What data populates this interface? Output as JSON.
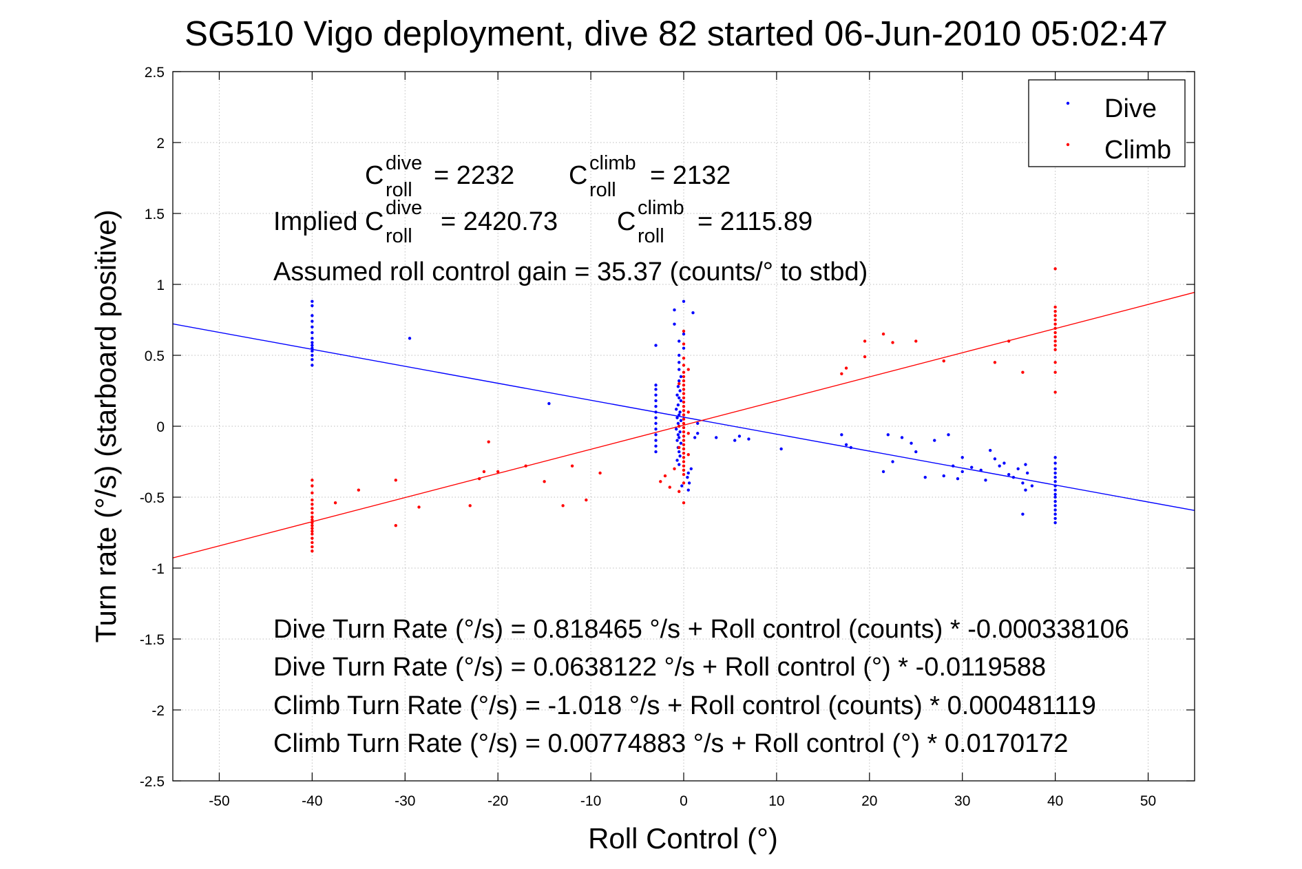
{
  "chart_data": {
    "type": "scatter",
    "title": "SG510 Vigo deployment, dive 82 started 06-Jun-2010 05:02:47",
    "xlabel": "Roll Control (°)",
    "ylabel": "Turn rate (°/s) (starboard positive)",
    "xlim": [
      -55,
      55
    ],
    "ylim": [
      -2.5,
      2.5
    ],
    "grid": true,
    "legend_position": "top-right",
    "x_ticks": [
      "-50",
      "-40",
      "-30",
      "-20",
      "-10",
      "0",
      "10",
      "20",
      "30",
      "40",
      "50"
    ],
    "y_ticks": [
      "2.5",
      "2",
      "1.5",
      "1",
      "0.5",
      "0",
      "-0.5",
      "-1",
      "-1.5",
      "-2",
      "-2.5"
    ],
    "coefficients": {
      "c_label": "C",
      "sub": "roll",
      "sup_dive": "dive",
      "sup_climb": "climb",
      "dive_value": "= 2232",
      "climb_value": "= 2132",
      "implied_prefix": "Implied C",
      "implied_dive_value": "= 2420.73",
      "implied_climb_value": "= 2115.89",
      "gain_text": "Assumed roll control gain = 35.37 (counts/° to stbd)"
    },
    "equations": [
      "Dive Turn Rate (°/s) = 0.818465 °/s + Roll control (counts) * -0.000338106",
      "Dive Turn Rate (°/s) = 0.0638122 °/s + Roll control (°) * -0.0119588",
      "Climb Turn Rate (°/s) = -1.018 °/s + Roll control (counts) * 0.000481119",
      "Climb Turn Rate (°/s) = 0.00774883 °/s + Roll control (°) * 0.0170172"
    ],
    "fit_lines": [
      {
        "series": "Dive",
        "intercept": 0.0638122,
        "slope": -0.0119588,
        "color": "#0000ff"
      },
      {
        "series": "Climb",
        "intercept": 0.00774883,
        "slope": 0.0170172,
        "color": "#ff0000"
      }
    ],
    "series": [
      {
        "name": "Dive",
        "color": "#0000ff",
        "points": [
          [
            -40,
            0.88
          ],
          [
            -40,
            0.85
          ],
          [
            -40,
            0.78
          ],
          [
            -40,
            0.74
          ],
          [
            -40,
            0.7
          ],
          [
            -40,
            0.66
          ],
          [
            -40,
            0.62
          ],
          [
            -40,
            0.59
          ],
          [
            -40,
            0.57
          ],
          [
            -40,
            0.55
          ],
          [
            -40,
            0.53
          ],
          [
            -40,
            0.5
          ],
          [
            -40,
            0.47
          ],
          [
            -40,
            0.43
          ],
          [
            -29.5,
            0.62
          ],
          [
            -14.5,
            0.16
          ],
          [
            -3,
            0.57
          ],
          [
            -3,
            0.29
          ],
          [
            -3,
            0.26
          ],
          [
            -3,
            0.22
          ],
          [
            -3,
            0.18
          ],
          [
            -3,
            0.14
          ],
          [
            -3,
            0.1
          ],
          [
            -3,
            0.06
          ],
          [
            -3,
            0.02
          ],
          [
            -3,
            -0.02
          ],
          [
            -3,
            -0.06
          ],
          [
            -3,
            -0.1
          ],
          [
            -3,
            -0.14
          ],
          [
            -3,
            -0.18
          ],
          [
            -1,
            0.82
          ],
          [
            -1,
            0.72
          ],
          [
            -0.5,
            0.6
          ],
          [
            -0.5,
            0.5
          ],
          [
            -0.5,
            0.45
          ],
          [
            -0.5,
            0.4
          ],
          [
            0,
            0.88
          ],
          [
            0,
            0.65
          ],
          [
            0,
            0.55
          ],
          [
            -0.3,
            0.35
          ],
          [
            -0.5,
            0.32
          ],
          [
            -0.6,
            0.28
          ],
          [
            -0.4,
            0.25
          ],
          [
            -0.7,
            0.22
          ],
          [
            -0.5,
            0.2
          ],
          [
            -0.3,
            0.18
          ],
          [
            -0.6,
            0.15
          ],
          [
            -0.8,
            0.12
          ],
          [
            -0.4,
            0.1
          ],
          [
            -0.5,
            0.08
          ],
          [
            -0.7,
            0.06
          ],
          [
            -0.3,
            0.04
          ],
          [
            -0.6,
            0.02
          ],
          [
            -0.5,
            0.0
          ],
          [
            -0.8,
            -0.02
          ],
          [
            -0.4,
            -0.04
          ],
          [
            -0.6,
            -0.06
          ],
          [
            -0.5,
            -0.08
          ],
          [
            -0.7,
            -0.1
          ],
          [
            -0.3,
            -0.12
          ],
          [
            -0.6,
            -0.15
          ],
          [
            -0.5,
            -0.18
          ],
          [
            -0.4,
            -0.21
          ],
          [
            -0.7,
            -0.24
          ],
          [
            -0.5,
            -0.27
          ],
          [
            0.8,
            -0.3
          ],
          [
            0.5,
            -0.33
          ],
          [
            0.4,
            -0.36
          ],
          [
            0.6,
            -0.4
          ],
          [
            0.5,
            -0.45
          ],
          [
            1,
            0.8
          ],
          [
            1.5,
            0.02
          ],
          [
            1.5,
            -0.05
          ],
          [
            1.2,
            -0.08
          ],
          [
            -0.2,
            -0.42
          ],
          [
            3.5,
            -0.08
          ],
          [
            5.5,
            -0.1
          ],
          [
            6,
            -0.07
          ],
          [
            7,
            -0.09
          ],
          [
            10.5,
            -0.16
          ],
          [
            17,
            -0.06
          ],
          [
            17.5,
            -0.13
          ],
          [
            18,
            -0.15
          ],
          [
            21.5,
            -0.32
          ],
          [
            22,
            -0.06
          ],
          [
            22.5,
            -0.25
          ],
          [
            23.5,
            -0.08
          ],
          [
            24.5,
            -0.12
          ],
          [
            25,
            -0.18
          ],
          [
            26,
            -0.36
          ],
          [
            27,
            -0.1
          ],
          [
            28,
            -0.35
          ],
          [
            28.5,
            -0.06
          ],
          [
            29,
            -0.28
          ],
          [
            29.5,
            -0.37
          ],
          [
            30,
            -0.32
          ],
          [
            30,
            -0.22
          ],
          [
            31,
            -0.29
          ],
          [
            32,
            -0.31
          ],
          [
            32.5,
            -0.38
          ],
          [
            33,
            -0.17
          ],
          [
            33.5,
            -0.23
          ],
          [
            34,
            -0.28
          ],
          [
            34.5,
            -0.26
          ],
          [
            35,
            -0.34
          ],
          [
            35.5,
            -0.36
          ],
          [
            36,
            -0.3
          ],
          [
            36.5,
            -0.4
          ],
          [
            36.8,
            -0.45
          ],
          [
            37,
            -0.33
          ],
          [
            36.5,
            -0.62
          ],
          [
            36.8,
            -0.27
          ],
          [
            37.5,
            -0.42
          ],
          [
            40,
            -0.22
          ],
          [
            40,
            -0.26
          ],
          [
            40,
            -0.3
          ],
          [
            40,
            -0.33
          ],
          [
            40,
            -0.36
          ],
          [
            40,
            -0.39
          ],
          [
            40,
            -0.42
          ],
          [
            40,
            -0.45
          ],
          [
            40,
            -0.48
          ],
          [
            40,
            -0.5
          ],
          [
            40,
            -0.53
          ],
          [
            40,
            -0.56
          ],
          [
            40,
            -0.59
          ],
          [
            40,
            -0.62
          ],
          [
            40,
            -0.65
          ],
          [
            40,
            -0.68
          ]
        ]
      },
      {
        "name": "Climb",
        "color": "#ff0000",
        "points": [
          [
            -40,
            -0.38
          ],
          [
            -40,
            -0.42
          ],
          [
            -40,
            -0.47
          ],
          [
            -40,
            -0.52
          ],
          [
            -40,
            -0.55
          ],
          [
            -40,
            -0.58
          ],
          [
            -40,
            -0.61
          ],
          [
            -40,
            -0.64
          ],
          [
            -40,
            -0.66
          ],
          [
            -40,
            -0.68
          ],
          [
            -40,
            -0.7
          ],
          [
            -40,
            -0.72
          ],
          [
            -40,
            -0.74
          ],
          [
            -40,
            -0.76
          ],
          [
            -40,
            -0.79
          ],
          [
            -40,
            -0.82
          ],
          [
            -40,
            -0.85
          ],
          [
            -40,
            -0.88
          ],
          [
            -37.5,
            -0.54
          ],
          [
            -35,
            -0.45
          ],
          [
            -31,
            -0.7
          ],
          [
            -31,
            -0.38
          ],
          [
            -28.5,
            -0.57
          ],
          [
            -23,
            -0.56
          ],
          [
            -22,
            -0.37
          ],
          [
            -21.5,
            -0.32
          ],
          [
            -21,
            -0.11
          ],
          [
            -20,
            -0.32
          ],
          [
            -17,
            -0.28
          ],
          [
            -15,
            -0.39
          ],
          [
            -13,
            -0.56
          ],
          [
            -12,
            -0.28
          ],
          [
            -10.5,
            -0.52
          ],
          [
            -9,
            -0.33
          ],
          [
            -2.5,
            -0.39
          ],
          [
            -2,
            -0.35
          ],
          [
            -1.5,
            -0.43
          ],
          [
            -1,
            -0.3
          ],
          [
            -0.5,
            -0.46
          ],
          [
            0,
            -0.54
          ],
          [
            0,
            0.67
          ],
          [
            0,
            0.58
          ],
          [
            0,
            0.48
          ],
          [
            0,
            0.43
          ],
          [
            0,
            0.38
          ],
          [
            0,
            0.35
          ],
          [
            0,
            0.32
          ],
          [
            0,
            0.29
          ],
          [
            0,
            0.26
          ],
          [
            0,
            0.23
          ],
          [
            0,
            0.2
          ],
          [
            0,
            0.17
          ],
          [
            0,
            0.14
          ],
          [
            0,
            0.11
          ],
          [
            0,
            0.08
          ],
          [
            0,
            0.05
          ],
          [
            0,
            0.02
          ],
          [
            0,
            -0.01
          ],
          [
            0,
            -0.04
          ],
          [
            0,
            -0.07
          ],
          [
            0,
            -0.1
          ],
          [
            0,
            -0.13
          ],
          [
            0,
            -0.16
          ],
          [
            0,
            -0.19
          ],
          [
            0,
            -0.22
          ],
          [
            0,
            -0.25
          ],
          [
            0,
            -0.28
          ],
          [
            0,
            -0.31
          ],
          [
            0,
            -0.34
          ],
          [
            0,
            -0.4
          ],
          [
            0.5,
            0.4
          ],
          [
            0.5,
            0.1
          ],
          [
            0.5,
            -0.05
          ],
          [
            0.5,
            -0.2
          ],
          [
            -0.5,
            0.3
          ],
          [
            -0.5,
            0.0
          ],
          [
            -0.5,
            -0.15
          ],
          [
            17,
            0.37
          ],
          [
            17.5,
            0.41
          ],
          [
            19.5,
            0.6
          ],
          [
            19.5,
            0.49
          ],
          [
            21.5,
            0.65
          ],
          [
            22.5,
            0.59
          ],
          [
            25,
            0.6
          ],
          [
            28,
            0.46
          ],
          [
            33.5,
            0.45
          ],
          [
            35,
            0.6
          ],
          [
            36.5,
            0.38
          ],
          [
            40,
            1.11
          ],
          [
            40,
            0.84
          ],
          [
            40,
            0.81
          ],
          [
            40,
            0.78
          ],
          [
            40,
            0.75
          ],
          [
            40,
            0.72
          ],
          [
            40,
            0.69
          ],
          [
            40,
            0.66
          ],
          [
            40,
            0.63
          ],
          [
            40,
            0.6
          ],
          [
            40,
            0.57
          ],
          [
            40,
            0.54
          ],
          [
            40,
            0.45
          ],
          [
            40,
            0.38
          ],
          [
            40,
            0.24
          ]
        ]
      }
    ]
  }
}
